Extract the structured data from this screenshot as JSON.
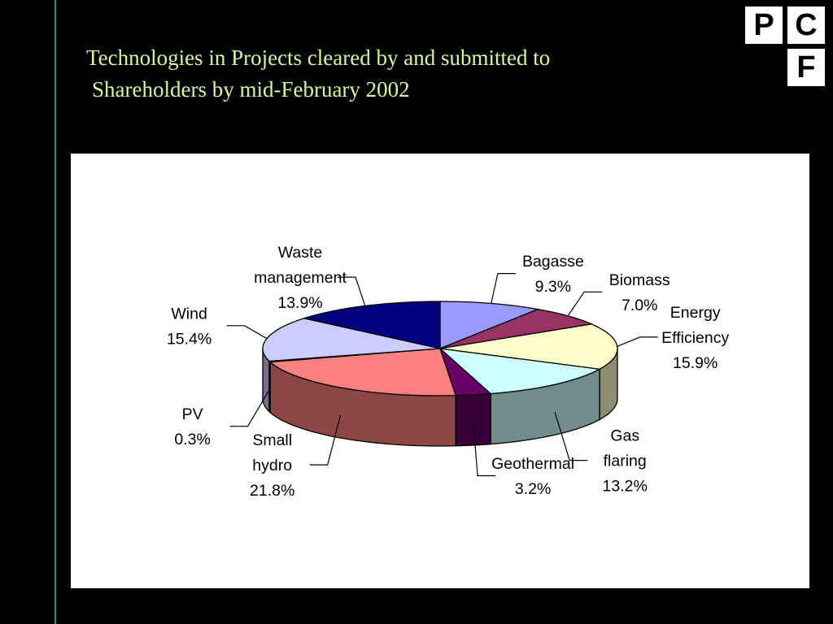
{
  "title": {
    "line1": "Technologies in Projects cleared by and submitted to",
    "line2": "Shareholders  by mid-February 2002"
  },
  "logo": {
    "letters": [
      "P",
      "C",
      "F"
    ]
  },
  "chart_data": {
    "type": "pie",
    "three_d": true,
    "title": "",
    "start": "top",
    "direction": "clockwise",
    "slices": [
      {
        "label": "Bagasse",
        "value": 9.3,
        "value_label": "9.3%",
        "color": "#9999ff"
      },
      {
        "label": "Biomass",
        "value": 7.0,
        "value_label": "7.0%",
        "color": "#993366"
      },
      {
        "label": "Energy Efficiency",
        "value": 15.9,
        "value_label": "15.9%",
        "color": "#ffffcc"
      },
      {
        "label": "Gas flaring",
        "value": 13.2,
        "value_label": "13.2%",
        "color": "#ccffff"
      },
      {
        "label": "Geothermal",
        "value": 3.2,
        "value_label": "3.2%",
        "color": "#660066"
      },
      {
        "label": "Small hydro",
        "value": 21.8,
        "value_label": "21.8%",
        "color": "#ff8080"
      },
      {
        "label": "PV",
        "value": 0.3,
        "value_label": "0.3%",
        "color": "#0066cc"
      },
      {
        "label": "Wind",
        "value": 15.4,
        "value_label": "15.4%",
        "color": "#ccccff"
      },
      {
        "label": "Waste management",
        "value": 13.9,
        "value_label": "13.9%",
        "color": "#000080"
      }
    ]
  }
}
